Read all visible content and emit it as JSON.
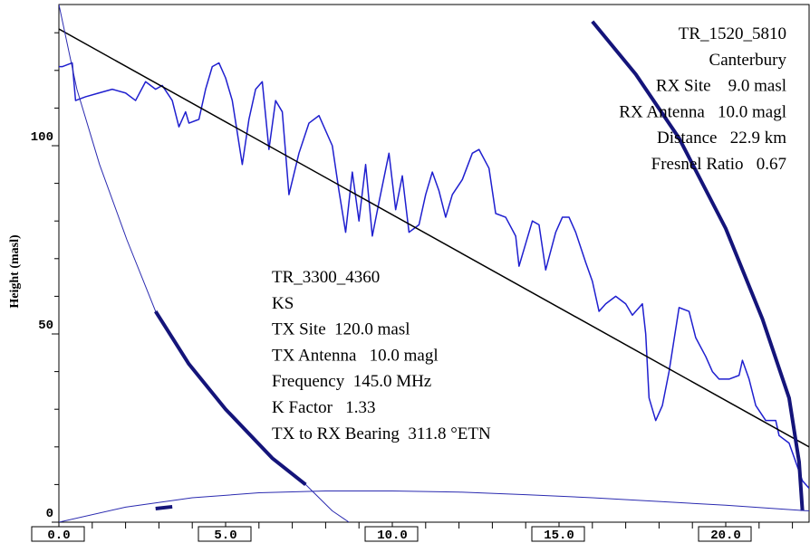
{
  "chart_data": {
    "type": "line",
    "ylabel": "Height (masl)",
    "xlim": [
      0,
      22.5
    ],
    "ylim": [
      0,
      137.5
    ],
    "xticks": [
      {
        "value": 0,
        "label": "0.0"
      },
      {
        "value": 5,
        "label": "5.0"
      },
      {
        "value": 10,
        "label": "10.0"
      },
      {
        "value": 15,
        "label": "15.0"
      },
      {
        "value": 20,
        "label": "20.0"
      }
    ],
    "xminorticks": [
      1,
      2,
      3,
      4,
      6,
      7,
      8,
      9,
      11,
      12,
      13,
      14,
      16,
      17,
      18,
      19,
      21,
      22
    ],
    "yticks": [
      0,
      50,
      100
    ],
    "yminorticks": [
      10,
      20,
      30,
      40,
      60,
      70,
      80,
      90,
      110,
      120,
      130
    ],
    "series": [
      {
        "color": "#1f1fcf",
        "line_width": 1.5,
        "x": [
          0.0,
          0.1,
          0.4,
          0.5,
          0.8,
          1.2,
          1.6,
          2.0,
          2.3,
          2.6,
          2.9,
          3.1,
          3.4,
          3.6,
          3.8,
          3.9,
          4.2,
          4.4,
          4.6,
          4.8,
          5.0,
          5.2,
          5.5,
          5.7,
          5.9,
          6.1,
          6.3,
          6.5,
          6.7,
          6.9,
          7.2,
          7.5,
          7.8,
          8.2,
          8.4,
          8.6,
          8.8,
          9.0,
          9.2,
          9.4,
          9.6,
          9.9,
          10.1,
          10.3,
          10.5,
          10.8,
          11.0,
          11.2,
          11.4,
          11.6,
          11.8,
          12.1,
          12.4,
          12.6,
          12.9,
          13.1,
          13.4,
          13.7,
          13.8,
          14.0,
          14.2,
          14.4,
          14.6,
          14.9,
          15.1,
          15.3,
          15.5,
          15.8,
          16.0,
          16.2,
          16.4,
          16.7,
          17.0,
          17.2,
          17.5,
          17.6,
          17.7,
          17.9,
          18.1,
          18.3,
          18.6,
          18.9,
          19.1,
          19.4,
          19.6,
          19.8,
          20.1,
          20.4,
          20.5,
          20.7,
          20.9,
          21.2,
          21.5,
          21.6,
          21.9,
          22.1,
          22.3,
          22.5
        ],
        "values": [
          121,
          121,
          122,
          112,
          113,
          114,
          115,
          114,
          112,
          117,
          115,
          116,
          112,
          105,
          109,
          106,
          107,
          115,
          121,
          122,
          118,
          112,
          95,
          107,
          115,
          117,
          99,
          112,
          109,
          87,
          98,
          106,
          108,
          100,
          88,
          77,
          93,
          80,
          95,
          76,
          85,
          98,
          83,
          92,
          77,
          79,
          87,
          93,
          88,
          81,
          87,
          91,
          98,
          99,
          94,
          82,
          81,
          76,
          68,
          74,
          80,
          79,
          67,
          77,
          81,
          81,
          77,
          69,
          64,
          56,
          58,
          60,
          58,
          55,
          58,
          50,
          33,
          27,
          31,
          40,
          57,
          56,
          49,
          44,
          40,
          38,
          38,
          39,
          43,
          38,
          31,
          27,
          27,
          23,
          21,
          16,
          11,
          9
        ]
      },
      {
        "color": "#000000",
        "line_width": 1.5,
        "x": [
          0,
          22.5
        ],
        "values": [
          131,
          20
        ]
      },
      {
        "color": "#2a2ab0",
        "line_width": 1,
        "x": [
          0,
          0.54,
          1.22,
          2.04,
          2.9,
          3.9,
          5.0,
          6.4,
          7.4,
          8.2,
          8.7
        ],
        "values": [
          137.5,
          115,
          95,
          75,
          56,
          42,
          30,
          17,
          10,
          3,
          0
        ]
      },
      {
        "color": "#14147a",
        "line_width": 4,
        "x": [
          2.9,
          3.9,
          5.0,
          6.4,
          7.4
        ],
        "values": [
          56,
          42,
          30,
          17,
          10
        ]
      },
      {
        "color": "#14147a",
        "line_width": 4,
        "x": [
          16.0,
          17.3,
          18.6,
          20.0,
          21.1,
          21.9,
          22.2,
          22.3
        ],
        "values": [
          133,
          119,
          102,
          78,
          54,
          33,
          16,
          3
        ]
      },
      {
        "color": "#2a2ab0",
        "line_width": 1,
        "x": [
          0,
          2,
          4,
          6,
          8,
          10,
          12,
          14,
          16,
          18,
          20,
          22.5
        ],
        "values": [
          0,
          4,
          6.5,
          7.8,
          8.3,
          8.3,
          8,
          7.3,
          6.5,
          5.5,
          4.5,
          3
        ]
      },
      {
        "color": "#14147a",
        "line_width": 4,
        "x": [
          2.9,
          3.4
        ],
        "values": [
          3.6,
          4.1
        ]
      }
    ],
    "annotations": [
      {
        "align": "right",
        "lines": [
          "TR_1520_5810",
          "Canterbury",
          "RX Site    9.0 masl",
          "RX Antenna   10.0 magl",
          "Distance   22.9 km",
          "Fresnel Ratio   0.67"
        ]
      },
      {
        "align": "left",
        "lines": [
          "TR_3300_4360",
          "KS",
          "TX Site  120.0 masl",
          "TX Antenna   10.0 magl",
          "Frequency  145.0 MHz",
          "K Factor   1.33",
          "TX to RX Bearing  311.8 °ETN"
        ]
      }
    ]
  }
}
